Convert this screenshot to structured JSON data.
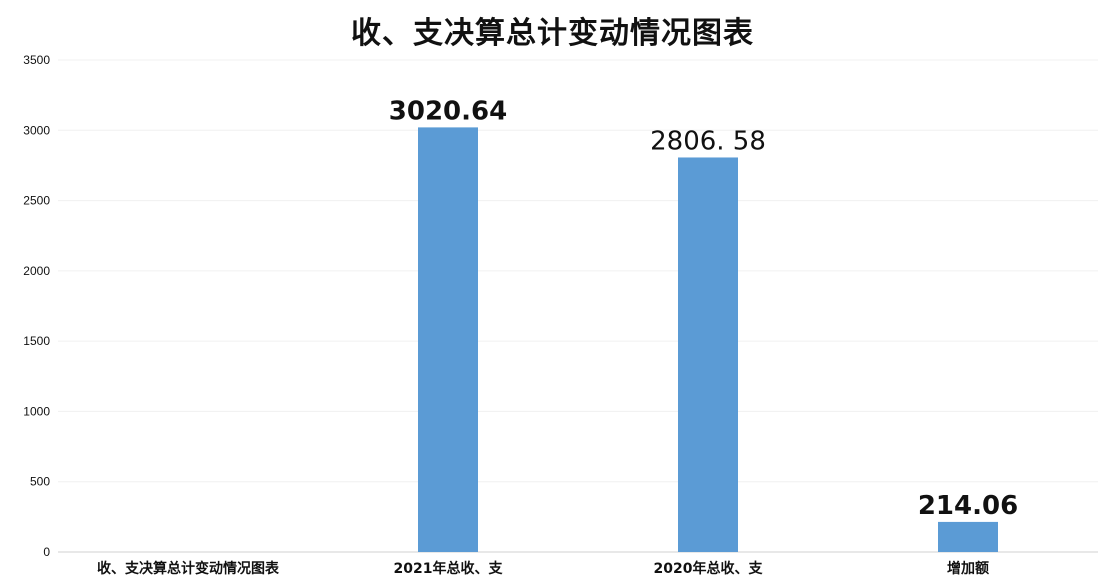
{
  "chart_data": {
    "type": "bar",
    "title": "收、支决算总计变动情况图表",
    "categories": [
      "收、支决算总计变动情况图表",
      "2021年总收、支",
      "2020年总收、支",
      "增加额"
    ],
    "values": [
      null,
      3020.64,
      2806.58,
      214.06
    ],
    "data_labels": [
      "",
      "3020.64",
      "2806. 58",
      "214.06"
    ],
    "ylim": [
      0,
      3500
    ],
    "yticks": [
      0,
      500,
      1000,
      1500,
      2000,
      2500,
      3000,
      3500
    ],
    "ytick_labels": [
      "0",
      "500",
      "1000",
      "1500",
      "2000",
      "2500",
      "3000",
      "3500"
    ],
    "bar_color": "#5b9bd5",
    "grid": true,
    "xlabel": "",
    "ylabel": ""
  }
}
